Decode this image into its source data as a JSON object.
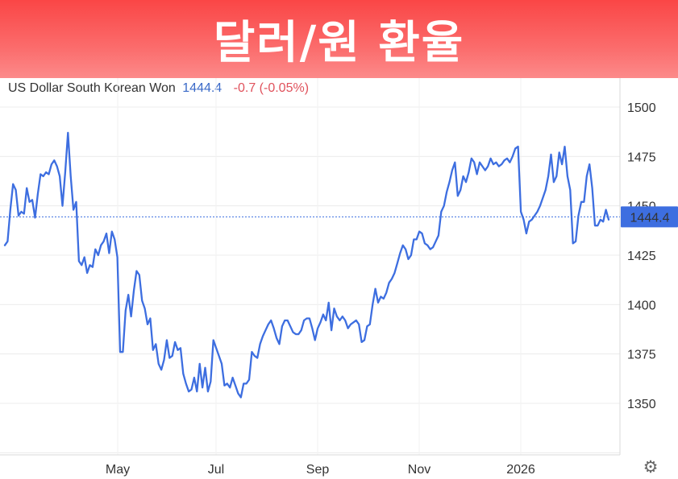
{
  "banner": {
    "title": "달러/원 환율"
  },
  "quote": {
    "name": "US Dollar South Korean Won",
    "price": "1444.4",
    "change": "-0.7 (-0.05%)"
  },
  "current_label": "1444.4",
  "icons": {
    "settings": "gear-icon"
  },
  "colors": {
    "line": "#3d6ee0",
    "badge": "#3d6ee0",
    "banner": "#fa4a4a",
    "change": "#e0525c"
  },
  "chart_data": {
    "type": "line",
    "title": "",
    "xlabel": "",
    "ylabel": "",
    "x_tick_labels": [
      "May",
      "Jul",
      "Sep",
      "Nov",
      "2026"
    ],
    "y_tick_labels": [
      "1500",
      "1475",
      "1450",
      "1425",
      "1400",
      "1375",
      "1350"
    ],
    "ylim": [
      1325,
      1510
    ],
    "y_axis_position": "right",
    "grid": true,
    "current_value": 1444.4,
    "series": [
      {
        "name": "",
        "values": [
          1430,
          1432,
          1448,
          1461,
          1458,
          1445,
          1447,
          1446,
          1459,
          1452,
          1453,
          1444,
          1456,
          1466,
          1465,
          1467,
          1466,
          1471,
          1473,
          1470,
          1465,
          1450,
          1467,
          1487,
          1465,
          1448,
          1452,
          1422,
          1420,
          1424,
          1416,
          1420,
          1419,
          1428,
          1425,
          1430,
          1432,
          1436,
          1426,
          1437,
          1433,
          1424,
          1376,
          1376,
          1397,
          1405,
          1394,
          1407,
          1417,
          1415,
          1402,
          1398,
          1390,
          1393,
          1377,
          1380,
          1370,
          1367,
          1372,
          1382,
          1373,
          1374,
          1381,
          1377,
          1378,
          1365,
          1360,
          1356,
          1357,
          1363,
          1356,
          1370,
          1358,
          1368,
          1356,
          1361,
          1382,
          1378,
          1374,
          1370,
          1359,
          1360,
          1358,
          1363,
          1359,
          1355,
          1353,
          1360,
          1360,
          1362,
          1376,
          1374,
          1373,
          1380,
          1384,
          1387,
          1390,
          1392,
          1388,
          1383,
          1380,
          1389,
          1392,
          1392,
          1389,
          1386,
          1385,
          1385,
          1387,
          1392,
          1393,
          1393,
          1388,
          1382,
          1388,
          1391,
          1395,
          1392,
          1401,
          1387,
          1398,
          1394,
          1392,
          1394,
          1392,
          1388,
          1390,
          1391,
          1392,
          1390,
          1381,
          1382,
          1389,
          1390,
          1400,
          1408,
          1401,
          1404,
          1403,
          1406,
          1411,
          1413,
          1416,
          1421,
          1426,
          1430,
          1428,
          1423,
          1425,
          1433,
          1433,
          1437,
          1436,
          1431,
          1430,
          1428,
          1429,
          1432,
          1435,
          1447,
          1450,
          1457,
          1462,
          1468,
          1472,
          1455,
          1458,
          1465,
          1462,
          1467,
          1474,
          1472,
          1466,
          1472,
          1470,
          1468,
          1470,
          1474,
          1471,
          1472,
          1470,
          1471,
          1473,
          1474,
          1472,
          1475,
          1479,
          1480,
          1447,
          1443,
          1436,
          1442,
          1443,
          1445,
          1447,
          1450,
          1454,
          1458,
          1465,
          1476,
          1462,
          1465,
          1477,
          1471,
          1480,
          1465,
          1458,
          1431,
          1432,
          1445,
          1452,
          1452,
          1465,
          1471,
          1459,
          1440,
          1440,
          1443,
          1442,
          1448,
          1443
        ]
      }
    ]
  }
}
